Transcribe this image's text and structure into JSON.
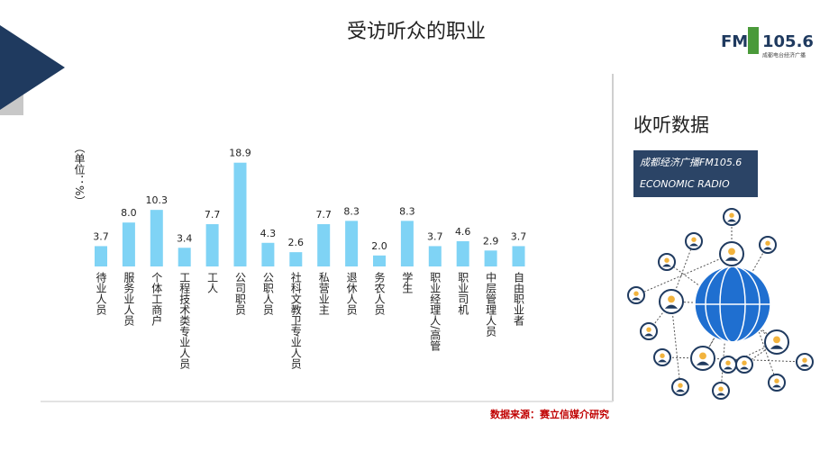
{
  "chart_data": {
    "type": "bar",
    "title": "受访听众的职业",
    "y_label": "（单位：%）",
    "categories": [
      "待业人员",
      "服务业人员",
      "个体工商户",
      "工程技术类专业人员",
      "工人",
      "公司职员",
      "公职人员",
      "社科文教卫专业人员",
      "私营业主",
      "退休人员",
      "务农人员",
      "学生",
      "职业经理人/高管",
      "职业司机",
      "中层管理人员",
      "自由职业者"
    ],
    "values": [
      3.7,
      8.0,
      10.3,
      3.4,
      7.7,
      18.9,
      4.3,
      2.6,
      7.7,
      8.3,
      2.0,
      8.3,
      3.7,
      4.6,
      2.9,
      3.7
    ],
    "value_labels": [
      "3.7",
      "8.0",
      "10.3",
      "3.4",
      "7.7",
      "18.9",
      "4.3",
      "2.6",
      "7.7",
      "8.3",
      "2.0",
      "8.3",
      "3.7",
      "4.6",
      "2.9",
      "3.7"
    ],
    "color": "#7fd3f5",
    "ylim": [
      0,
      20
    ],
    "source": "数据来源：赛立信媒介研究"
  },
  "sidebar": {
    "heading": "收听数据",
    "station": "成都经济广播FM105.6",
    "station_en": "ECONOMIC RADIO"
  },
  "logo": {
    "fm": "FM",
    "freq": "105.6",
    "sub": "成都电台经济广播"
  }
}
